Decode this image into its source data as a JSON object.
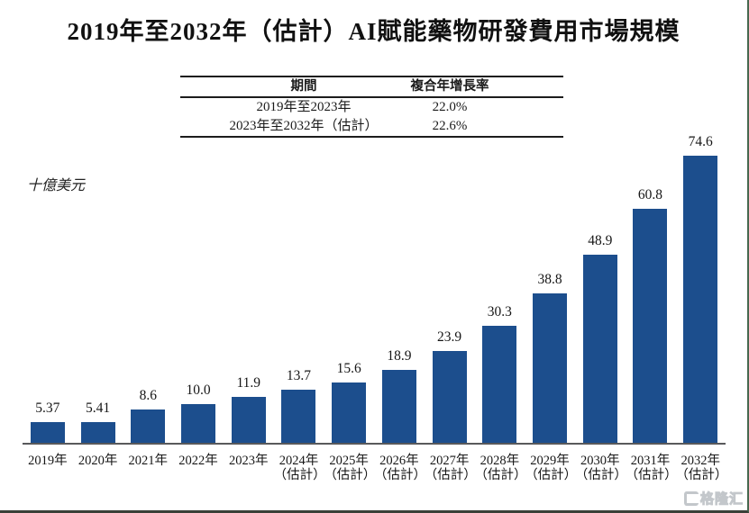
{
  "title": "2019年至2032年（估計）AI賦能藥物研發費用市場規模",
  "summary_table": {
    "headers": [
      "期間",
      "複合年增長率"
    ],
    "rows": [
      [
        "2019年至2023年",
        "22.0%"
      ],
      [
        "2023年至2032年（估計）",
        "22.6%"
      ]
    ]
  },
  "unit_label": "十億美元",
  "watermark": {
    "text": "格隆汇"
  },
  "chart_data": {
    "type": "bar",
    "title": "2019年至2032年（估計）AI賦能藥物研發費用市場規模",
    "xlabel": "",
    "ylabel": "十億美元",
    "ylim": [
      0,
      80
    ],
    "grid": false,
    "legend": "none",
    "bar_color": "#1C4E8D",
    "categories": [
      "2019年",
      "2020年",
      "2021年",
      "2022年",
      "2023年",
      "2024年",
      "2025年",
      "2026年",
      "2027年",
      "2028年",
      "2029年",
      "2030年",
      "2031年",
      "2032年"
    ],
    "estimate_suffix": "（估計）",
    "estimate_from_index": 5,
    "values": [
      5.37,
      5.41,
      8.6,
      10.0,
      11.9,
      13.7,
      15.6,
      18.9,
      23.9,
      30.3,
      38.8,
      48.9,
      60.8,
      74.6
    ],
    "value_labels": [
      "5.37",
      "5.41",
      "8.6",
      "10.0",
      "11.9",
      "13.7",
      "15.6",
      "18.9",
      "23.9",
      "30.3",
      "38.8",
      "48.9",
      "60.8",
      "74.6"
    ]
  }
}
